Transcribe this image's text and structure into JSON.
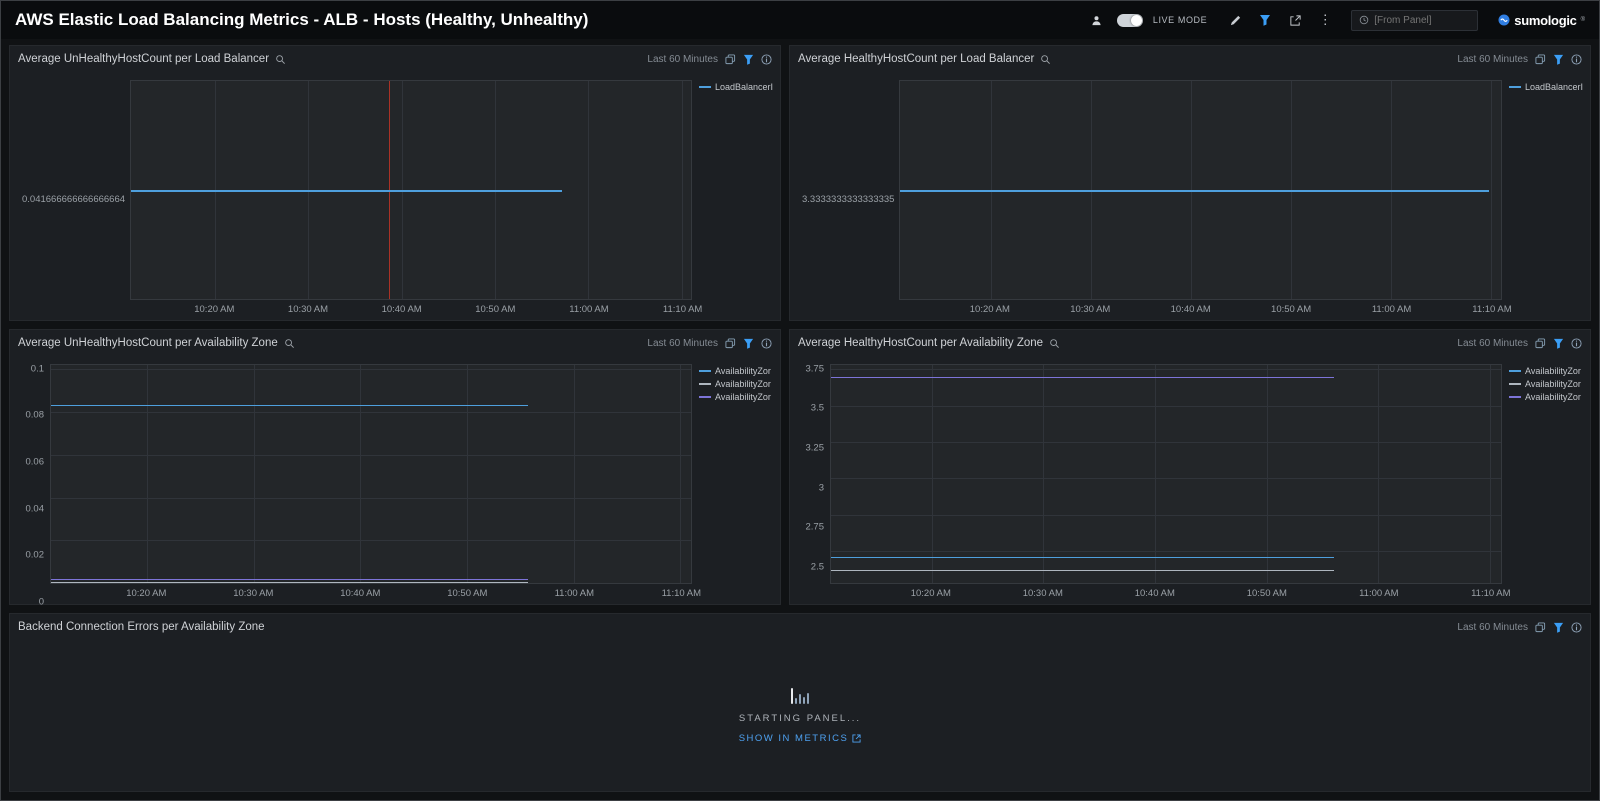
{
  "header": {
    "title": "AWS Elastic Load Balancing Metrics - ALB - Hosts (Healthy, Unhealthy)",
    "live_mode": "LIVE MODE",
    "time_input_placeholder": "[From Panel]",
    "brand": "sumologic",
    "brand_mark": "®"
  },
  "panels": [
    {
      "title": "Average UnHealthyHostCount per Load Balancer",
      "time_range": "Last 60 Minutes",
      "chart_data": {
        "type": "line",
        "x_ticks": [
          "10:20 AM",
          "10:30 AM",
          "10:40 AM",
          "10:50 AM",
          "11:00 AM",
          "11:10 AM"
        ],
        "y_label": "0.041666666666666664",
        "ylim": [
          0,
          0.08333333333333333
        ],
        "grid": "vertical",
        "legend_position": "right",
        "series": [
          {
            "name": "LoadBalancerI",
            "color": "#4e9fdd",
            "value": 0.041666666666666664,
            "start": 0,
            "end": 0.77
          }
        ],
        "vlines": [
          {
            "frac": 0.46,
            "color": "#a93226"
          }
        ]
      }
    },
    {
      "title": "Average HealthyHostCount per Load Balancer",
      "time_range": "Last 60 Minutes",
      "chart_data": {
        "type": "line",
        "x_ticks": [
          "10:20 AM",
          "10:30 AM",
          "10:40 AM",
          "10:50 AM",
          "11:00 AM",
          "11:10 AM"
        ],
        "y_label": "3.3333333333333335",
        "ylim": [
          0,
          6.666666666666667
        ],
        "grid": "vertical",
        "legend_position": "right",
        "series": [
          {
            "name": "LoadBalancerI",
            "color": "#4e9fdd",
            "value": 3.3333333333333335,
            "start": 0,
            "end": 0.98
          }
        ],
        "vlines": []
      }
    },
    {
      "title": "Average UnHealthyHostCount per Availability Zone",
      "time_range": "Last 60 Minutes",
      "chart_data": {
        "type": "line",
        "x_ticks": [
          "10:20 AM",
          "10:30 AM",
          "10:40 AM",
          "10:50 AM",
          "11:00 AM",
          "11:10 AM"
        ],
        "y_ticks": [
          "0.1",
          "0.08",
          "0.06",
          "0.04",
          "0.02",
          "0"
        ],
        "ylim": [
          0,
          0.102
        ],
        "grid": "both",
        "legend_position": "right",
        "series": [
          {
            "name": "AvailabilityZor",
            "color": "#4e9fdd",
            "value": 0.08333333333333333,
            "start": 0,
            "end": 0.745
          },
          {
            "name": "AvailabilityZor",
            "color": "#aeb6bf",
            "value": 0.0005,
            "start": 0,
            "end": 0.745
          },
          {
            "name": "AvailabilityZor",
            "color": "#7d74d8",
            "value": 0.002,
            "start": 0,
            "end": 0.745
          }
        ],
        "vlines": []
      }
    },
    {
      "title": "Average HealthyHostCount per Availability Zone",
      "time_range": "Last 60 Minutes",
      "chart_data": {
        "type": "line",
        "x_ticks": [
          "10:20 AM",
          "10:30 AM",
          "10:40 AM",
          "10:50 AM",
          "11:00 AM",
          "11:10 AM"
        ],
        "y_ticks": [
          "3.75",
          "3.5",
          "3.25",
          "3",
          "2.75",
          "2.5"
        ],
        "ylim": [
          2.28,
          3.78
        ],
        "grid": "both",
        "legend_position": "right",
        "series": [
          {
            "name": "AvailabilityZor",
            "color": "#4e9fdd",
            "value": 2.46,
            "start": 0,
            "end": 0.75
          },
          {
            "name": "AvailabilityZor",
            "color": "#aeb6bf",
            "value": 2.37,
            "start": 0,
            "end": 0.75
          },
          {
            "name": "AvailabilityZor",
            "color": "#7d74d8",
            "value": 3.7,
            "start": 0,
            "end": 0.75
          }
        ],
        "vlines": []
      }
    }
  ],
  "loading_panel": {
    "title": "Backend Connection Errors per Availability Zone",
    "time_range": "Last 60 Minutes",
    "status": "STARTING PANEL...",
    "link_label": "SHOW IN METRICS"
  }
}
